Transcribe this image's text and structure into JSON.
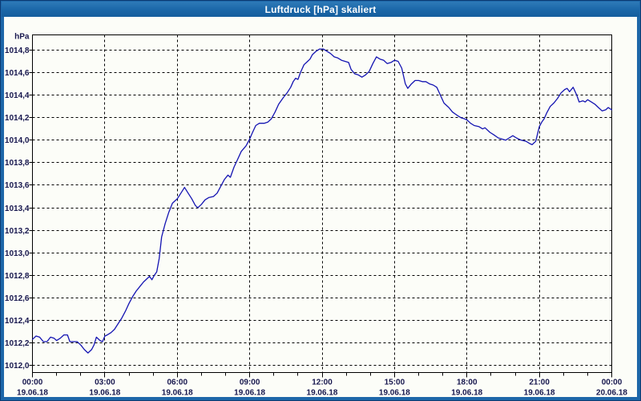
{
  "window": {
    "title": "Luftdruck [hPa] skaliert"
  },
  "chart_data": {
    "type": "line",
    "title": "Luftdruck [hPa] skaliert",
    "grid": "dashed",
    "legend_position": "none",
    "y_axis": {
      "unit_label": "hPa",
      "min": 1012.0,
      "max": 1014.8,
      "step": 0.2,
      "decimal_separator": ",",
      "tick_labels": [
        "1014,8",
        "1014,6",
        "1014,4",
        "1014,2",
        "1014,0",
        "1013,8",
        "1013,6",
        "1013,4",
        "1013,2",
        "1013,0",
        "1012,8",
        "1012,6",
        "1012,4",
        "1012,2",
        "1012,0"
      ]
    },
    "x_axis": {
      "hours_span": 24,
      "minor_tick_hours": 1,
      "major_tick_hours": 3,
      "ticks": [
        {
          "time": "00:00",
          "date": "19.06.18"
        },
        {
          "time": "03:00",
          "date": "19.06.18"
        },
        {
          "time": "06:00",
          "date": "19.06.18"
        },
        {
          "time": "09:00",
          "date": "19.06.18"
        },
        {
          "time": "12:00",
          "date": "19.06.18"
        },
        {
          "time": "15:00",
          "date": "19.06.18"
        },
        {
          "time": "18:00",
          "date": "19.06.18"
        },
        {
          "time": "21:00",
          "date": "19.06.18"
        },
        {
          "time": "00:00",
          "date": "20.06.18"
        }
      ]
    },
    "series": [
      {
        "name": "Luftdruck",
        "color": "#1414b2",
        "points": [
          [
            0.0,
            1012.23
          ],
          [
            0.15,
            1012.26
          ],
          [
            0.3,
            1012.25
          ],
          [
            0.45,
            1012.21
          ],
          [
            0.6,
            1012.21
          ],
          [
            0.75,
            1012.25
          ],
          [
            0.9,
            1012.24
          ],
          [
            1.0,
            1012.22
          ],
          [
            1.15,
            1012.24
          ],
          [
            1.3,
            1012.27
          ],
          [
            1.45,
            1012.27
          ],
          [
            1.55,
            1012.21
          ],
          [
            1.7,
            1012.21
          ],
          [
            1.85,
            1012.21
          ],
          [
            2.0,
            1012.18
          ],
          [
            2.15,
            1012.14
          ],
          [
            2.3,
            1012.11
          ],
          [
            2.45,
            1012.14
          ],
          [
            2.55,
            1012.18
          ],
          [
            2.65,
            1012.25
          ],
          [
            2.8,
            1012.22
          ],
          [
            2.9,
            1012.21
          ],
          [
            3.0,
            1012.26
          ],
          [
            3.1,
            1012.27
          ],
          [
            3.25,
            1012.29
          ],
          [
            3.4,
            1012.32
          ],
          [
            3.55,
            1012.37
          ],
          [
            3.7,
            1012.42
          ],
          [
            3.85,
            1012.48
          ],
          [
            4.0,
            1012.55
          ],
          [
            4.15,
            1012.61
          ],
          [
            4.3,
            1012.66
          ],
          [
            4.45,
            1012.7
          ],
          [
            4.6,
            1012.74
          ],
          [
            4.75,
            1012.77
          ],
          [
            4.85,
            1012.79
          ],
          [
            4.95,
            1012.76
          ],
          [
            5.05,
            1012.8
          ],
          [
            5.15,
            1012.83
          ],
          [
            5.25,
            1012.95
          ],
          [
            5.35,
            1013.14
          ],
          [
            5.5,
            1013.26
          ],
          [
            5.65,
            1013.36
          ],
          [
            5.8,
            1013.44
          ],
          [
            5.9,
            1013.46
          ],
          [
            6.0,
            1013.48
          ],
          [
            6.15,
            1013.53
          ],
          [
            6.3,
            1013.58
          ],
          [
            6.45,
            1013.53
          ],
          [
            6.6,
            1013.48
          ],
          [
            6.75,
            1013.42
          ],
          [
            6.85,
            1013.4
          ],
          [
            7.0,
            1013.43
          ],
          [
            7.15,
            1013.47
          ],
          [
            7.3,
            1013.49
          ],
          [
            7.5,
            1013.5
          ],
          [
            7.65,
            1013.53
          ],
          [
            7.8,
            1013.59
          ],
          [
            7.95,
            1013.65
          ],
          [
            8.1,
            1013.69
          ],
          [
            8.2,
            1013.67
          ],
          [
            8.35,
            1013.76
          ],
          [
            8.5,
            1013.83
          ],
          [
            8.65,
            1013.9
          ],
          [
            8.85,
            1013.95
          ],
          [
            9.0,
            1014.01
          ],
          [
            9.1,
            1014.06
          ],
          [
            9.25,
            1014.13
          ],
          [
            9.4,
            1014.15
          ],
          [
            9.6,
            1014.15
          ],
          [
            9.75,
            1014.16
          ],
          [
            9.9,
            1014.19
          ],
          [
            10.05,
            1014.25
          ],
          [
            10.2,
            1014.32
          ],
          [
            10.4,
            1014.38
          ],
          [
            10.55,
            1014.42
          ],
          [
            10.7,
            1014.47
          ],
          [
            10.8,
            1014.52
          ],
          [
            10.9,
            1014.55
          ],
          [
            11.0,
            1014.54
          ],
          [
            11.1,
            1014.6
          ],
          [
            11.25,
            1014.67
          ],
          [
            11.4,
            1014.7
          ],
          [
            11.5,
            1014.72
          ],
          [
            11.6,
            1014.76
          ],
          [
            11.75,
            1014.79
          ],
          [
            11.9,
            1014.81
          ],
          [
            12.05,
            1014.81
          ],
          [
            12.2,
            1014.79
          ],
          [
            12.35,
            1014.77
          ],
          [
            12.5,
            1014.74
          ],
          [
            12.65,
            1014.73
          ],
          [
            12.8,
            1014.71
          ],
          [
            12.95,
            1014.7
          ],
          [
            13.1,
            1014.69
          ],
          [
            13.2,
            1014.63
          ],
          [
            13.35,
            1014.59
          ],
          [
            13.5,
            1014.58
          ],
          [
            13.65,
            1014.56
          ],
          [
            13.8,
            1014.58
          ],
          [
            13.95,
            1014.61
          ],
          [
            14.1,
            1014.68
          ],
          [
            14.25,
            1014.74
          ],
          [
            14.4,
            1014.72
          ],
          [
            14.55,
            1014.71
          ],
          [
            14.7,
            1014.68
          ],
          [
            14.85,
            1014.69
          ],
          [
            15.0,
            1014.71
          ],
          [
            15.15,
            1014.7
          ],
          [
            15.3,
            1014.64
          ],
          [
            15.45,
            1014.5
          ],
          [
            15.55,
            1014.46
          ],
          [
            15.7,
            1014.5
          ],
          [
            15.85,
            1014.53
          ],
          [
            16.0,
            1014.53
          ],
          [
            16.15,
            1014.52
          ],
          [
            16.3,
            1014.52
          ],
          [
            16.45,
            1014.5
          ],
          [
            16.6,
            1014.49
          ],
          [
            16.75,
            1014.47
          ],
          [
            16.9,
            1014.4
          ],
          [
            17.05,
            1014.33
          ],
          [
            17.25,
            1014.29
          ],
          [
            17.4,
            1014.25
          ],
          [
            17.6,
            1014.22
          ],
          [
            17.75,
            1014.2
          ],
          [
            17.9,
            1014.19
          ],
          [
            18.0,
            1014.18
          ],
          [
            18.15,
            1014.15
          ],
          [
            18.3,
            1014.13
          ],
          [
            18.5,
            1014.12
          ],
          [
            18.65,
            1014.1
          ],
          [
            18.75,
            1014.11
          ],
          [
            18.95,
            1014.07
          ],
          [
            19.1,
            1014.05
          ],
          [
            19.3,
            1014.02
          ],
          [
            19.45,
            1014.01
          ],
          [
            19.6,
            1014.0
          ],
          [
            19.75,
            1014.02
          ],
          [
            19.9,
            1014.04
          ],
          [
            20.05,
            1014.02
          ],
          [
            20.25,
            1014.0
          ],
          [
            20.45,
            1013.99
          ],
          [
            20.6,
            1013.97
          ],
          [
            20.7,
            1013.96
          ],
          [
            20.85,
            1013.99
          ],
          [
            21.0,
            1014.12
          ],
          [
            21.1,
            1014.16
          ],
          [
            21.2,
            1014.19
          ],
          [
            21.3,
            1014.24
          ],
          [
            21.45,
            1014.3
          ],
          [
            21.6,
            1014.33
          ],
          [
            21.75,
            1014.37
          ],
          [
            21.9,
            1014.42
          ],
          [
            22.05,
            1014.45
          ],
          [
            22.15,
            1014.46
          ],
          [
            22.25,
            1014.43
          ],
          [
            22.4,
            1014.47
          ],
          [
            22.55,
            1014.4
          ],
          [
            22.65,
            1014.34
          ],
          [
            22.8,
            1014.35
          ],
          [
            22.9,
            1014.34
          ],
          [
            23.0,
            1014.36
          ],
          [
            23.15,
            1014.34
          ],
          [
            23.3,
            1014.32
          ],
          [
            23.45,
            1014.29
          ],
          [
            23.6,
            1014.26
          ],
          [
            23.75,
            1014.27
          ],
          [
            23.85,
            1014.29
          ],
          [
            24.0,
            1014.27
          ]
        ]
      }
    ]
  },
  "colors": {
    "titlebar_blue": "#1b67a8",
    "frame_blue": "#1e67a9",
    "panel_background": "#fcfdf8",
    "grid_black": "#000000",
    "label_color": "#17174e",
    "line_navy": "#1414b2"
  }
}
